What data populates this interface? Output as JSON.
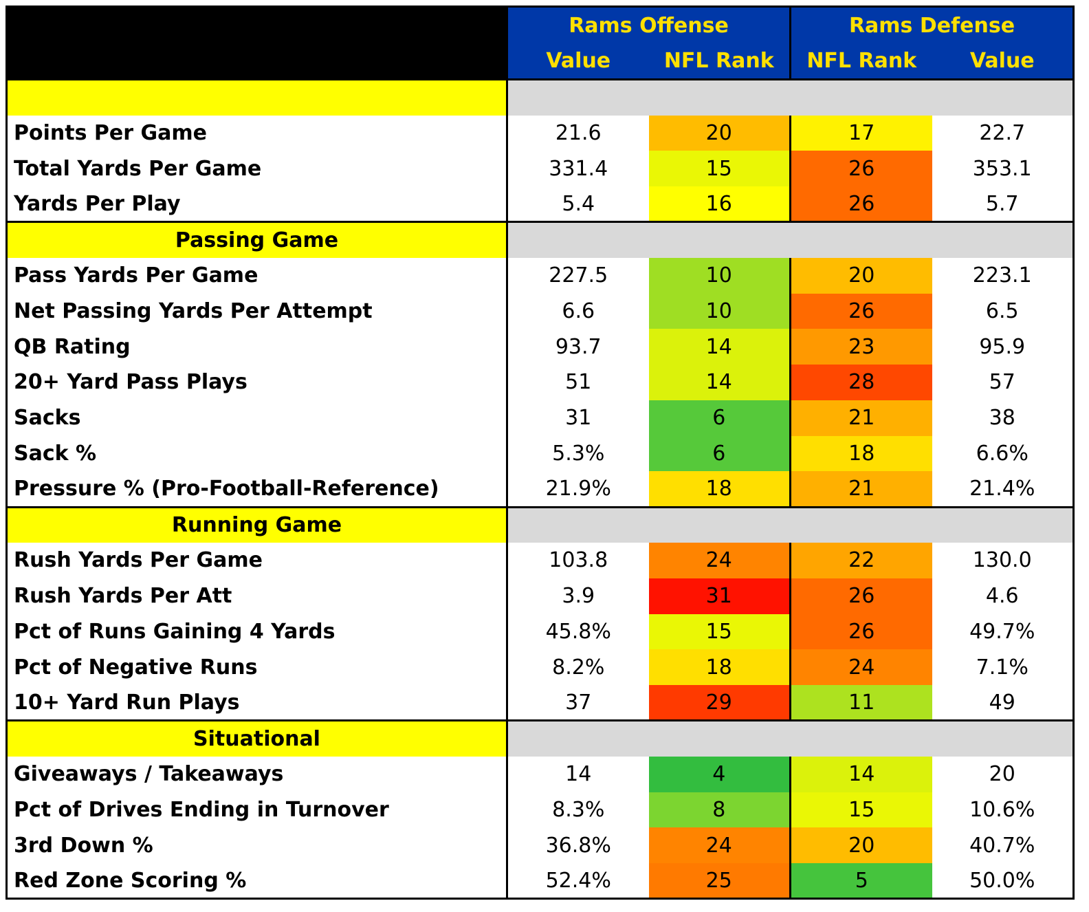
{
  "header": {
    "offense_title": "Rams Offense",
    "defense_title": "Rams Defense",
    "offense_cols": [
      "Value",
      "NFL Rank"
    ],
    "defense_cols": [
      "NFL Rank",
      "Value"
    ]
  },
  "colors": {
    "header_blue": "#0038A8",
    "header_gold": "#FFE000",
    "section_yellow": "#FFFF00",
    "section_gray": "#D9D9D9",
    "rank_scale": {
      "4": "#33BD3F",
      "5": "#45C43D",
      "6": "#56C93A",
      "8": "#7CD530",
      "10": "#9FDE23",
      "11": "#ADE21F",
      "14": "#DBF20B",
      "15": "#EAF705",
      "16": "#FFFF00",
      "17": "#FFF200",
      "18": "#FFDF00",
      "20": "#FFBC00",
      "21": "#FFB000",
      "22": "#FFA500",
      "23": "#FF9900",
      "24": "#FF8400",
      "25": "#FF7A00",
      "26": "#FF6A00",
      "28": "#FF4800",
      "29": "#FF3A00",
      "31": "#FF1200"
    }
  },
  "chart_data": {
    "type": "table",
    "columns": [
      "",
      "Rams Offense Value",
      "Rams Offense NFL Rank",
      "Rams Defense NFL Rank",
      "Rams Defense Value"
    ],
    "sections": [
      {
        "title": "",
        "rows": [
          {
            "metric": "Points Per Game",
            "off_value": "21.6",
            "off_rank": 20,
            "def_rank": 17,
            "def_value": "22.7"
          },
          {
            "metric": "Total Yards Per Game",
            "off_value": "331.4",
            "off_rank": 15,
            "def_rank": 26,
            "def_value": "353.1"
          },
          {
            "metric": "Yards Per Play",
            "off_value": "5.4",
            "off_rank": 16,
            "def_rank": 26,
            "def_value": "5.7"
          }
        ]
      },
      {
        "title": "Passing Game",
        "rows": [
          {
            "metric": "Pass Yards Per Game",
            "off_value": "227.5",
            "off_rank": 10,
            "def_rank": 20,
            "def_value": "223.1"
          },
          {
            "metric": "Net Passing Yards Per Attempt",
            "off_value": "6.6",
            "off_rank": 10,
            "def_rank": 26,
            "def_value": "6.5"
          },
          {
            "metric": "QB Rating",
            "off_value": "93.7",
            "off_rank": 14,
            "def_rank": 23,
            "def_value": "95.9"
          },
          {
            "metric": "20+ Yard Pass Plays",
            "off_value": "51",
            "off_rank": 14,
            "def_rank": 28,
            "def_value": "57"
          },
          {
            "metric": "Sacks",
            "off_value": "31",
            "off_rank": 6,
            "def_rank": 21,
            "def_value": "38"
          },
          {
            "metric": "Sack %",
            "off_value": "5.3%",
            "off_rank": 6,
            "def_rank": 18,
            "def_value": "6.6%"
          },
          {
            "metric": "Pressure % (Pro-Football-Reference)",
            "off_value": "21.9%",
            "off_rank": 18,
            "def_rank": 21,
            "def_value": "21.4%"
          }
        ]
      },
      {
        "title": "Running Game",
        "rows": [
          {
            "metric": "Rush Yards Per Game",
            "off_value": "103.8",
            "off_rank": 24,
            "def_rank": 22,
            "def_value": "130.0"
          },
          {
            "metric": "Rush Yards Per Att",
            "off_value": "3.9",
            "off_rank": 31,
            "def_rank": 26,
            "def_value": "4.6"
          },
          {
            "metric": "Pct of Runs Gaining 4 Yards",
            "off_value": "45.8%",
            "off_rank": 15,
            "def_rank": 26,
            "def_value": "49.7%"
          },
          {
            "metric": "Pct of Negative Runs",
            "off_value": "8.2%",
            "off_rank": 18,
            "def_rank": 24,
            "def_value": "7.1%"
          },
          {
            "metric": "10+ Yard Run Plays",
            "off_value": "37",
            "off_rank": 29,
            "def_rank": 11,
            "def_value": "49"
          }
        ]
      },
      {
        "title": "Situational",
        "rows": [
          {
            "metric": "Giveaways / Takeaways",
            "off_value": "14",
            "off_rank": 4,
            "def_rank": 14,
            "def_value": "20"
          },
          {
            "metric": "Pct of Drives Ending in Turnover",
            "off_value": "8.3%",
            "off_rank": 8,
            "def_rank": 15,
            "def_value": "10.6%"
          },
          {
            "metric": "3rd Down %",
            "off_value": "36.8%",
            "off_rank": 24,
            "def_rank": 20,
            "def_value": "40.7%"
          },
          {
            "metric": "Red Zone Scoring %",
            "off_value": "52.4%",
            "off_rank": 25,
            "def_rank": 5,
            "def_value": "50.0%"
          }
        ]
      }
    ]
  }
}
